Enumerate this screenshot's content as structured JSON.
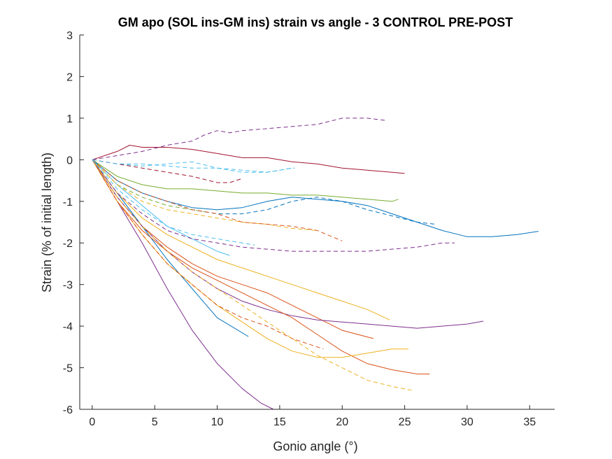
{
  "chart_data": {
    "type": "line",
    "title": "GM apo (SOL ins-GM ins) strain vs angle - 3 CONTROL PRE-POST",
    "xlabel": "Gonio angle (°)",
    "ylabel": "Strain (% of initial length)",
    "xlim": [
      -1,
      37
    ],
    "ylim": [
      -6,
      3
    ],
    "xticks": [
      "0",
      "5",
      "10",
      "15",
      "20",
      "25",
      "30",
      "35"
    ],
    "yticks": [
      "3",
      "2",
      "1",
      "0",
      "-1",
      "-2",
      "-3",
      "-4",
      "-5",
      "-6"
    ],
    "grid": false,
    "legend": "none",
    "series": [
      {
        "style": "solid",
        "color": "#7E2F8E",
        "x": [
          0,
          2,
          4,
          6,
          8,
          10,
          12,
          13.5,
          14.5
        ],
        "y": [
          0,
          -1.0,
          -2.0,
          -3.1,
          -4.1,
          -4.9,
          -5.5,
          -5.85,
          -6.0
        ]
      },
      {
        "style": "solid",
        "color": "#0072BD",
        "x": [
          0,
          2,
          4,
          6,
          8,
          10,
          12.5
        ],
        "y": [
          0,
          -0.8,
          -1.6,
          -2.4,
          -3.1,
          -3.8,
          -4.25
        ]
      },
      {
        "style": "solid",
        "color": "#D95319",
        "x": [
          0,
          2,
          4,
          6,
          8,
          10,
          12,
          14,
          16,
          18,
          20,
          22.5
        ],
        "y": [
          0,
          -0.9,
          -1.6,
          -2.1,
          -2.5,
          -2.8,
          -3.0,
          -3.2,
          -3.5,
          -3.8,
          -4.1,
          -4.3
        ]
      },
      {
        "style": "solid",
        "color": "#EDB120",
        "x": [
          0,
          2,
          4,
          6,
          8,
          10,
          12,
          14,
          16,
          18,
          20,
          22,
          23.8
        ],
        "y": [
          0,
          -0.8,
          -1.4,
          -1.8,
          -2.1,
          -2.4,
          -2.6,
          -2.8,
          -3.0,
          -3.2,
          -3.4,
          -3.6,
          -3.85
        ]
      },
      {
        "style": "solid",
        "color": "#7E2F8E",
        "x": [
          0,
          2,
          4,
          6,
          8,
          10,
          12,
          14,
          16,
          18,
          20,
          22,
          24,
          26,
          28,
          30,
          31.3
        ],
        "y": [
          0,
          -0.9,
          -1.6,
          -2.2,
          -2.7,
          -3.1,
          -3.4,
          -3.6,
          -3.75,
          -3.85,
          -3.9,
          -3.95,
          -4.0,
          -4.05,
          -4.0,
          -3.95,
          -3.88
        ]
      },
      {
        "style": "solid",
        "color": "#77AC30",
        "x": [
          0,
          2,
          4,
          6,
          8,
          10,
          12,
          14,
          16,
          18,
          20,
          22,
          24,
          24.5
        ],
        "y": [
          0,
          -0.4,
          -0.6,
          -0.7,
          -0.7,
          -0.75,
          -0.8,
          -0.8,
          -0.85,
          -0.85,
          -0.9,
          -0.95,
          -1.0,
          -0.95
        ]
      },
      {
        "style": "solid",
        "color": "#4DBEEE",
        "x": [
          0,
          2,
          4,
          6,
          8,
          10,
          11
        ],
        "y": [
          0,
          -0.6,
          -1.1,
          -1.6,
          -1.9,
          -2.2,
          -2.3
        ]
      },
      {
        "style": "solid",
        "color": "#A2142F",
        "x": [
          0,
          2,
          3,
          4,
          6,
          8,
          10,
          12,
          14,
          16,
          18,
          20,
          22,
          24,
          25
        ],
        "y": [
          0,
          0.2,
          0.35,
          0.3,
          0.3,
          0.25,
          0.15,
          0.05,
          0.05,
          -0.05,
          -0.1,
          -0.2,
          -0.25,
          -0.3,
          -0.33
        ]
      },
      {
        "style": "solid",
        "color": "#0072BD",
        "x": [
          0,
          2,
          4,
          6,
          8,
          10,
          12,
          14,
          16,
          18,
          20,
          22,
          24,
          26,
          28,
          30,
          32,
          34,
          35.7
        ],
        "y": [
          0,
          -0.5,
          -0.8,
          -1.0,
          -1.15,
          -1.2,
          -1.15,
          -1.0,
          -0.9,
          -0.95,
          -1.0,
          -1.1,
          -1.3,
          -1.5,
          -1.7,
          -1.85,
          -1.85,
          -1.8,
          -1.72
        ]
      },
      {
        "style": "solid",
        "color": "#D95319",
        "x": [
          0,
          2,
          4,
          6,
          8,
          10,
          12,
          14,
          16,
          18,
          20,
          22,
          24,
          26,
          27
        ],
        "y": [
          0,
          -1.0,
          -1.7,
          -2.2,
          -2.6,
          -2.9,
          -3.2,
          -3.5,
          -3.8,
          -4.2,
          -4.6,
          -4.9,
          -5.05,
          -5.15,
          -5.15
        ]
      },
      {
        "style": "solid",
        "color": "#EDB120",
        "x": [
          0,
          2,
          4,
          6,
          8,
          10,
          12,
          14,
          16,
          18,
          20,
          22,
          24,
          25.3
        ],
        "y": [
          0,
          -1.0,
          -1.8,
          -2.5,
          -3.0,
          -3.5,
          -3.9,
          -4.3,
          -4.6,
          -4.75,
          -4.75,
          -4.65,
          -4.55,
          -4.55
        ]
      },
      {
        "style": "dashed",
        "color": "#7E2F8E",
        "x": [
          0,
          2,
          4,
          6,
          8,
          9,
          10,
          11,
          12,
          14,
          16,
          18,
          20,
          22,
          23.4
        ],
        "y": [
          0,
          0.1,
          0.2,
          0.35,
          0.45,
          0.6,
          0.7,
          0.65,
          0.7,
          0.75,
          0.8,
          0.85,
          1.0,
          1.0,
          0.95
        ]
      },
      {
        "style": "dashed",
        "color": "#0072BD",
        "x": [
          0,
          2,
          4,
          6,
          8,
          10,
          12,
          14,
          16,
          18,
          20,
          22,
          24,
          26,
          27.5
        ],
        "y": [
          0,
          -0.5,
          -0.8,
          -1.0,
          -1.2,
          -1.3,
          -1.3,
          -1.2,
          -1.0,
          -0.9,
          -1.0,
          -1.2,
          -1.35,
          -1.5,
          -1.55
        ]
      },
      {
        "style": "dashed",
        "color": "#D95319",
        "x": [
          0,
          2,
          4,
          6,
          8,
          10,
          12,
          14,
          16,
          18,
          18.5
        ],
        "y": [
          0,
          -1.0,
          -1.8,
          -2.5,
          -3.0,
          -3.5,
          -3.8,
          -4.0,
          -4.3,
          -4.5,
          -4.55
        ]
      },
      {
        "style": "dashed",
        "color": "#EDB120",
        "x": [
          0,
          2,
          4,
          6,
          8,
          10,
          12,
          14,
          16,
          18,
          20,
          22,
          24,
          25.7
        ],
        "y": [
          0,
          -0.9,
          -1.6,
          -2.2,
          -2.7,
          -3.1,
          -3.5,
          -3.9,
          -4.3,
          -4.7,
          -5.0,
          -5.3,
          -5.45,
          -5.55
        ]
      },
      {
        "style": "dashed",
        "color": "#7E2F8E",
        "x": [
          0,
          2,
          4,
          6,
          8,
          10,
          12,
          14,
          16,
          18,
          20,
          22,
          24,
          26,
          28,
          29
        ],
        "y": [
          0,
          -0.8,
          -1.3,
          -1.7,
          -1.9,
          -2.0,
          -2.1,
          -2.15,
          -2.2,
          -2.2,
          -2.2,
          -2.2,
          -2.15,
          -2.1,
          -2.0,
          -2.0
        ]
      },
      {
        "style": "dashed",
        "color": "#77AC30",
        "x": [
          0,
          2,
          4,
          6,
          8,
          9
        ],
        "y": [
          0,
          -0.6,
          -0.9,
          -1.1,
          -1.2,
          -1.25
        ]
      },
      {
        "style": "dashed",
        "color": "#4DBEEE",
        "x": [
          0,
          2,
          4,
          6,
          8,
          10,
          12,
          14,
          16,
          16.2
        ],
        "y": [
          0,
          -0.1,
          -0.15,
          -0.1,
          -0.05,
          -0.2,
          -0.3,
          -0.3,
          -0.2,
          -0.2
        ]
      },
      {
        "style": "dashed",
        "color": "#A2142F",
        "x": [
          0,
          2,
          4,
          6,
          8,
          10,
          11,
          12
        ],
        "y": [
          0,
          -0.1,
          -0.2,
          -0.3,
          -0.4,
          -0.55,
          -0.55,
          -0.45
        ]
      },
      {
        "style": "dashed",
        "color": "#EDB120",
        "x": [
          0,
          2,
          4,
          6,
          8,
          10,
          12,
          14,
          16,
          18
        ],
        "y": [
          0,
          -0.6,
          -1.0,
          -1.2,
          -1.3,
          -1.4,
          -1.5,
          -1.55,
          -1.65,
          -1.7
        ]
      },
      {
        "style": "dashed",
        "color": "#D95319",
        "x": [
          0,
          2,
          4,
          6,
          8,
          10,
          12,
          14,
          16,
          18,
          20
        ],
        "y": [
          0,
          -0.5,
          -0.8,
          -1.0,
          -1.2,
          -1.3,
          -1.5,
          -1.55,
          -1.6,
          -1.7,
          -1.95
        ]
      },
      {
        "style": "dashed",
        "color": "#4DBEEE",
        "x": [
          0,
          2,
          4,
          6,
          8,
          10,
          12,
          13
        ],
        "y": [
          0,
          -0.7,
          -1.2,
          -1.6,
          -1.8,
          -1.9,
          -2.0,
          -2.05
        ]
      },
      {
        "style": "dashed",
        "color": "#4DBEEE",
        "x": [
          0,
          2,
          4,
          6,
          8,
          10,
          12,
          14,
          16
        ],
        "y": [
          0,
          -0.1,
          -0.1,
          -0.15,
          -0.2,
          -0.2,
          -0.25,
          -0.3,
          -0.2
        ]
      }
    ]
  }
}
